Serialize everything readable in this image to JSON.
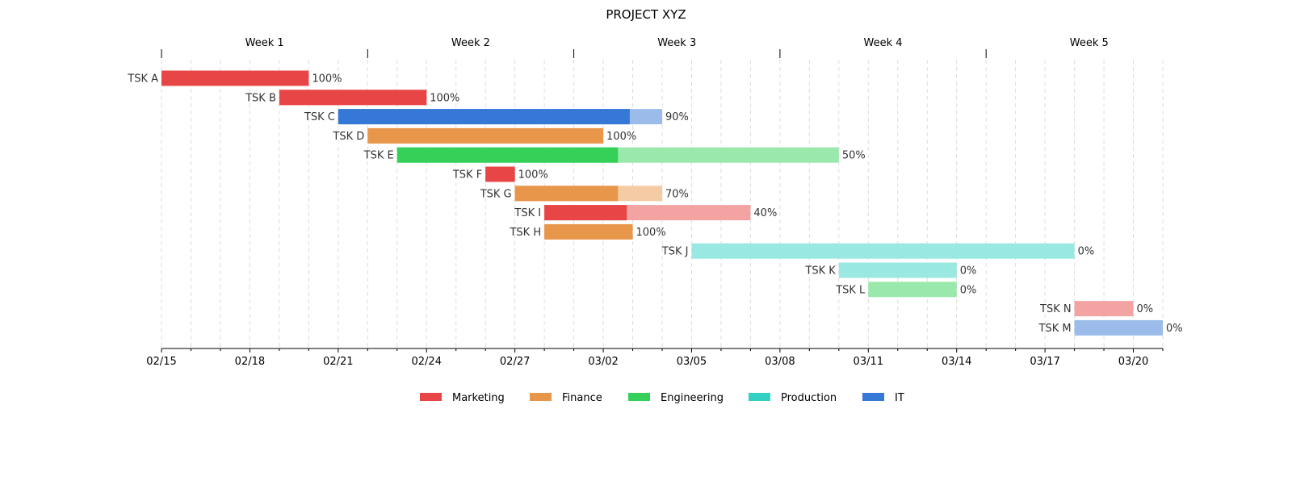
{
  "chart_data": {
    "type": "gantt",
    "title": "PROJECT XYZ",
    "start_date": "2024-02-15",
    "end_date": "2024-03-20",
    "x_ticks": [
      "02/15",
      "02/18",
      "02/21",
      "02/24",
      "02/27",
      "03/02",
      "03/05",
      "03/08",
      "03/11",
      "03/14",
      "03/17",
      "03/20"
    ],
    "weeks": [
      "Week 1",
      "Week 2",
      "Week 3",
      "Week 4",
      "Week 5"
    ],
    "departments": [
      {
        "name": "Marketing",
        "color": "#e84646"
      },
      {
        "name": "Finance",
        "color": "#e8964a"
      },
      {
        "name": "Engineering",
        "color": "#34d058"
      },
      {
        "name": "Production",
        "color": "#33d1c3"
      },
      {
        "name": "IT",
        "color": "#3678d6"
      }
    ],
    "tasks": [
      {
        "name": "TSK A",
        "department": "Marketing",
        "start": "2024-02-15",
        "end": "2024-02-20",
        "completion": 1.0,
        "label": "100%"
      },
      {
        "name": "TSK B",
        "department": "Marketing",
        "start": "2024-02-19",
        "end": "2024-02-24",
        "completion": 1.0,
        "label": "100%"
      },
      {
        "name": "TSK C",
        "department": "IT",
        "start": "2024-02-21",
        "end": "2024-03-03",
        "completion": 0.9,
        "label": "90%"
      },
      {
        "name": "TSK D",
        "department": "Finance",
        "start": "2024-02-22",
        "end": "2024-03-01",
        "completion": 1.0,
        "label": "100%"
      },
      {
        "name": "TSK E",
        "department": "Engineering",
        "start": "2024-02-23",
        "end": "2024-03-09",
        "completion": 0.5,
        "label": "50%"
      },
      {
        "name": "TSK F",
        "department": "Marketing",
        "start": "2024-02-26",
        "end": "2024-02-27",
        "completion": 1.0,
        "label": "100%"
      },
      {
        "name": "TSK G",
        "department": "Finance",
        "start": "2024-02-27",
        "end": "2024-03-03",
        "completion": 0.7,
        "label": "70%"
      },
      {
        "name": "TSK I",
        "department": "Marketing",
        "start": "2024-02-28",
        "end": "2024-03-06",
        "completion": 0.4,
        "label": "40%"
      },
      {
        "name": "TSK H",
        "department": "Finance",
        "start": "2024-02-28",
        "end": "2024-03-02",
        "completion": 1.0,
        "label": "100%"
      },
      {
        "name": "TSK J",
        "department": "Production",
        "start": "2024-03-04",
        "end": "2024-03-17",
        "completion": 0.0,
        "label": "0%"
      },
      {
        "name": "TSK K",
        "department": "Production",
        "start": "2024-03-09",
        "end": "2024-03-13",
        "completion": 0.0,
        "label": "0%"
      },
      {
        "name": "TSK L",
        "department": "Engineering",
        "start": "2024-03-10",
        "end": "2024-03-13",
        "completion": 0.0,
        "label": "0%"
      },
      {
        "name": "TSK N",
        "department": "Marketing",
        "start": "2024-03-17",
        "end": "2024-03-19",
        "completion": 0.0,
        "label": "0%"
      },
      {
        "name": "TSK M",
        "department": "IT",
        "start": "2024-03-17",
        "end": "2024-03-20",
        "completion": 0.0,
        "label": "0%"
      }
    ],
    "legend_position": "bottom-center",
    "grid": true
  }
}
